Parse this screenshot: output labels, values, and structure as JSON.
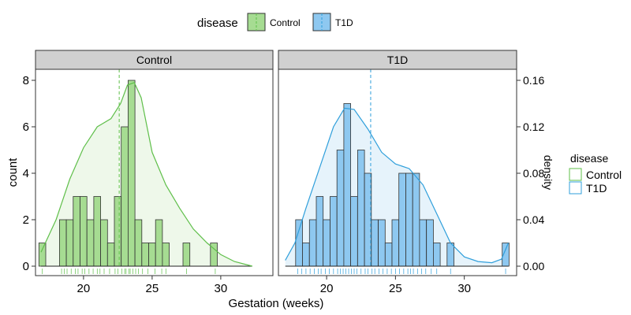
{
  "chart_data": {
    "type": "bar",
    "subtype": "faceted histogram with density overlay, rug and mean lines",
    "xlabel": "Gestation (weeks)",
    "ylabel": "count",
    "y2label": "density",
    "xlim": [
      16.5,
      33.8
    ],
    "ylim": [
      0,
      8.6
    ],
    "y2lim": [
      0,
      0.172
    ],
    "xticks": [
      "20",
      "25",
      "30"
    ],
    "yticks": [
      "0",
      "2",
      "4",
      "6",
      "8"
    ],
    "y2ticks": [
      "0.00",
      "0.04",
      "0.08",
      "0.12",
      "0.16"
    ],
    "bin_width": 0.5,
    "grid": false,
    "top_legend": {
      "title": "disease",
      "position": "top",
      "entries": [
        "Control",
        "T1D"
      ]
    },
    "right_legend": {
      "title": "disease",
      "position": "right",
      "entries": [
        "Control",
        "T1D"
      ]
    },
    "colors": {
      "Control": "#a6dc92",
      "T1D": "#8ec8f0",
      "Control_line": "#5fbf4a",
      "T1D_line": "#2f9fdb",
      "strip": "#d0d0d0"
    },
    "panels": [
      {
        "strip": "Control",
        "mean": 22.6,
        "bin_centers": [
          17,
          18.5,
          19,
          19.5,
          20,
          20.5,
          21,
          21.5,
          22,
          22.5,
          23,
          23.5,
          24,
          24.5,
          25,
          25.5,
          26,
          27.5,
          29.5
        ],
        "counts": [
          1,
          2,
          2,
          3,
          3,
          2,
          3,
          2,
          1,
          3,
          6,
          8,
          2,
          1,
          1,
          2,
          1,
          1,
          1
        ],
        "density": [
          [
            16.9,
            0.012
          ],
          [
            18,
            0.04
          ],
          [
            19,
            0.075
          ],
          [
            20,
            0.102
          ],
          [
            21,
            0.12
          ],
          [
            22,
            0.127
          ],
          [
            22.7,
            0.14
          ],
          [
            23.2,
            0.156
          ],
          [
            23.7,
            0.158
          ],
          [
            24.2,
            0.145
          ],
          [
            25,
            0.098
          ],
          [
            26,
            0.07
          ],
          [
            27,
            0.05
          ],
          [
            28,
            0.032
          ],
          [
            29,
            0.02
          ],
          [
            30,
            0.01
          ],
          [
            31,
            0.004
          ],
          [
            32.3,
            0.0
          ]
        ],
        "rug": [
          17,
          18.4,
          18.6,
          18.8,
          19.1,
          19.4,
          19.6,
          19.9,
          20.1,
          20.4,
          20.7,
          21,
          21.2,
          21.5,
          21.9,
          22.3,
          22.5,
          22.8,
          23,
          23.1,
          23.3,
          23.4,
          23.6,
          23.8,
          24,
          24.3,
          24.7,
          25.2,
          25.7,
          26,
          27.5,
          29.6
        ]
      },
      {
        "strip": "T1D",
        "mean": 23.2,
        "bin_centers": [
          18,
          18.5,
          19,
          19.5,
          20,
          20.5,
          21,
          21.5,
          22,
          22.5,
          23,
          23.5,
          24,
          24.5,
          25,
          25.5,
          26,
          26.5,
          27,
          27.5,
          28,
          29,
          33
        ],
        "counts": [
          2,
          1,
          2,
          3,
          2,
          3,
          5,
          7,
          3,
          5,
          4,
          2,
          2,
          1,
          2,
          4,
          4,
          4,
          2,
          2,
          1,
          1,
          1
        ],
        "density": [
          [
            17,
            0.005
          ],
          [
            17.7,
            0.02
          ],
          [
            18.5,
            0.05
          ],
          [
            19.5,
            0.085
          ],
          [
            20.5,
            0.12
          ],
          [
            21.3,
            0.136
          ],
          [
            22,
            0.135
          ],
          [
            23,
            0.118
          ],
          [
            24,
            0.098
          ],
          [
            25,
            0.088
          ],
          [
            26,
            0.084
          ],
          [
            27,
            0.07
          ],
          [
            28,
            0.045
          ],
          [
            29,
            0.02
          ],
          [
            30,
            0.008
          ],
          [
            31,
            0.004
          ],
          [
            32,
            0.003
          ],
          [
            32.7,
            0.006
          ],
          [
            33.2,
            0.02
          ]
        ],
        "rug": [
          17.9,
          18.2,
          18.5,
          18.8,
          19.1,
          19.4,
          19.6,
          19.9,
          20.2,
          20.5,
          20.8,
          21,
          21.2,
          21.4,
          21.6,
          21.8,
          22,
          22.2,
          22.5,
          22.8,
          23,
          23.3,
          23.5,
          23.8,
          24.1,
          24.4,
          24.7,
          25,
          25.3,
          25.6,
          25.9,
          26.1,
          26.3,
          26.6,
          26.9,
          27.2,
          27.6,
          28,
          29,
          33
        ]
      }
    ]
  }
}
